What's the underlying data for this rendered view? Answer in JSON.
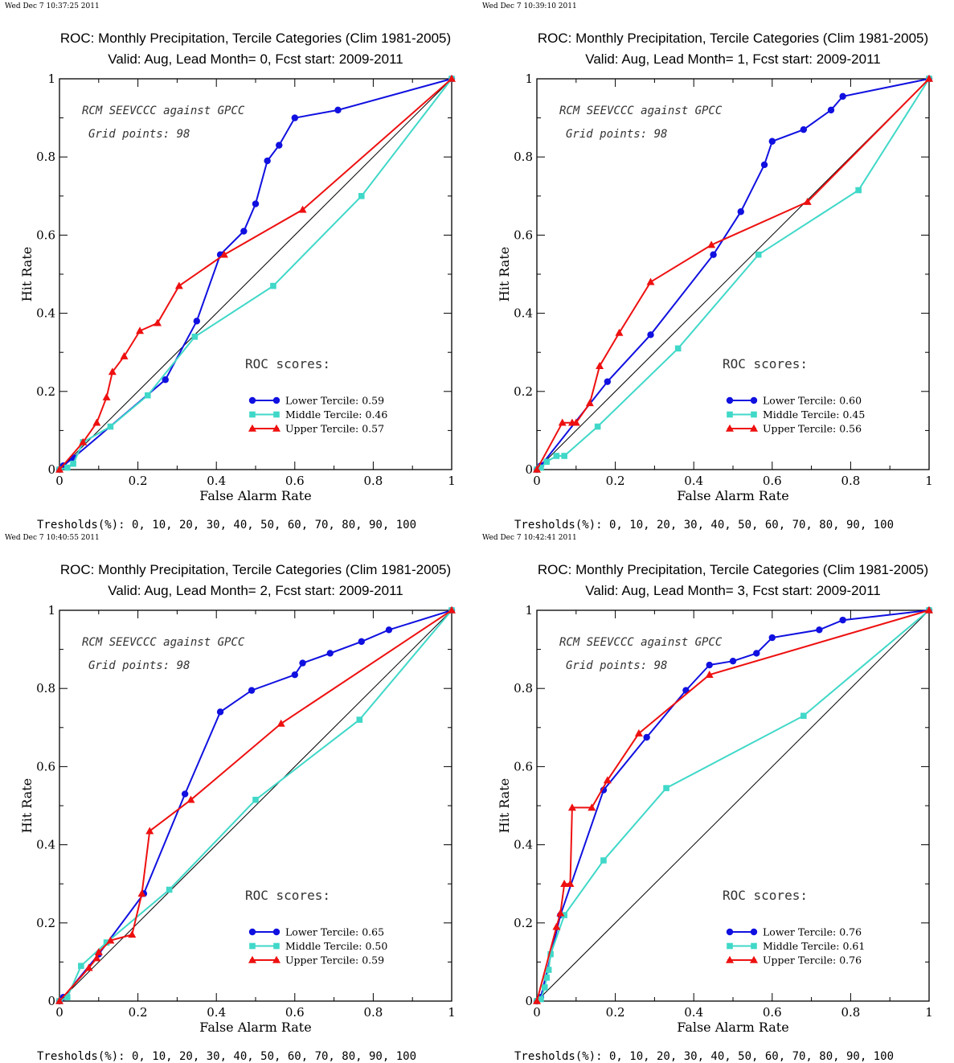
{
  "colors": {
    "lower": "#1010e0",
    "middle": "#40d8c8",
    "upper": "#ee1010",
    "diagonal": "#000000"
  },
  "chart_data": [
    {
      "type": "line",
      "timestamp": "Wed Dec  7 10:37:25 2011",
      "title": "ROC: Monthly Precipitation, Tercile Categories (Clim 1981-2005)",
      "subtitle": "Valid: Aug, Lead Month= 0, Fcst start: 2009-2011",
      "xlabel": "False Alarm Rate",
      "ylabel": "Hit Rate",
      "xlim": [
        0,
        1
      ],
      "ylim": [
        0,
        1
      ],
      "xticks": [
        "0",
        "0.2",
        "0.4",
        "0.6",
        "0.8",
        "1"
      ],
      "yticks": [
        "0",
        "0.2",
        "0.4",
        "0.6",
        "0.8",
        "1"
      ],
      "annotations": [
        "RCM SEEVCCC against GPCC",
        "Grid points:   98"
      ],
      "scores_heading": "ROC scores:",
      "thresholds": "Tresholds(%): 0, 10, 20, 30, 40, 50, 60, 70, 80, 90, 100",
      "legend_position": "lower-right",
      "series": [
        {
          "name": "Lower Tercile: 0.59",
          "key": "lower",
          "marker": "circle",
          "x": [
            0,
            0.01,
            0.035,
            0.27,
            0.35,
            0.41,
            0.47,
            0.5,
            0.53,
            0.56,
            0.6,
            0.71,
            1
          ],
          "y": [
            0,
            0.01,
            0.03,
            0.23,
            0.38,
            0.55,
            0.61,
            0.68,
            0.79,
            0.83,
            0.9,
            0.92,
            1
          ]
        },
        {
          "name": "Middle Tercile: 0.46",
          "key": "middle",
          "marker": "square",
          "x": [
            0,
            0.02,
            0.035,
            0.06,
            0.13,
            0.225,
            0.345,
            0.545,
            0.77,
            1
          ],
          "y": [
            0,
            0.005,
            0.015,
            0.07,
            0.11,
            0.19,
            0.34,
            0.47,
            0.7,
            1
          ]
        },
        {
          "name": "Upper Tercile: 0.57",
          "key": "upper",
          "marker": "triangle",
          "x": [
            0,
            0.06,
            0.095,
            0.12,
            0.135,
            0.165,
            0.205,
            0.25,
            0.305,
            0.42,
            0.62,
            1
          ],
          "y": [
            0,
            0.07,
            0.12,
            0.185,
            0.25,
            0.29,
            0.355,
            0.375,
            0.47,
            0.55,
            0.665,
            1
          ]
        }
      ]
    },
    {
      "type": "line",
      "timestamp": "Wed Dec  7 10:39:10 2011",
      "title": "ROC: Monthly Precipitation, Tercile Categories (Clim 1981-2005)",
      "subtitle": "Valid: Aug, Lead Month= 1, Fcst start: 2009-2011",
      "xlabel": "False Alarm Rate",
      "ylabel": "Hit Rate",
      "xlim": [
        0,
        1
      ],
      "ylim": [
        0,
        1
      ],
      "xticks": [
        "0",
        "0.2",
        "0.4",
        "0.6",
        "0.8",
        "1"
      ],
      "yticks": [
        "0",
        "0.2",
        "0.4",
        "0.6",
        "0.8",
        "1"
      ],
      "annotations": [
        "RCM SEEVCCC against GPCC",
        "Grid points:   98"
      ],
      "scores_heading": "ROC scores:",
      "thresholds": "Tresholds(%): 0, 10, 20, 30, 40, 50, 60, 70, 80, 90, 100",
      "legend_position": "lower-right",
      "series": [
        {
          "name": "Lower Tercile: 0.60",
          "key": "lower",
          "marker": "circle",
          "x": [
            0,
            0.01,
            0.18,
            0.29,
            0.45,
            0.52,
            0.58,
            0.6,
            0.68,
            0.75,
            0.78,
            1
          ],
          "y": [
            0,
            0.01,
            0.225,
            0.345,
            0.55,
            0.66,
            0.78,
            0.84,
            0.87,
            0.92,
            0.955,
            1
          ]
        },
        {
          "name": "Middle Tercile: 0.45",
          "key": "middle",
          "marker": "square",
          "x": [
            0,
            0.01,
            0.025,
            0.05,
            0.07,
            0.155,
            0.36,
            0.565,
            0.82,
            1
          ],
          "y": [
            0,
            0.005,
            0.02,
            0.035,
            0.035,
            0.11,
            0.31,
            0.55,
            0.715,
            1
          ]
        },
        {
          "name": "Upper Tercile: 0.56",
          "key": "upper",
          "marker": "triangle",
          "x": [
            0,
            0.065,
            0.09,
            0.1,
            0.135,
            0.16,
            0.21,
            0.29,
            0.445,
            0.69,
            1
          ],
          "y": [
            0,
            0.12,
            0.12,
            0.12,
            0.17,
            0.265,
            0.35,
            0.48,
            0.575,
            0.685,
            1
          ]
        }
      ]
    },
    {
      "type": "line",
      "timestamp": "Wed Dec  7 10:40:55 2011",
      "title": "ROC: Monthly Precipitation, Tercile Categories (Clim 1981-2005)",
      "subtitle": "Valid: Aug, Lead Month= 2, Fcst start: 2009-2011",
      "xlabel": "False Alarm Rate",
      "ylabel": "Hit Rate",
      "xlim": [
        0,
        1
      ],
      "ylim": [
        0,
        1
      ],
      "xticks": [
        "0",
        "0.2",
        "0.4",
        "0.6",
        "0.8",
        "1"
      ],
      "yticks": [
        "0",
        "0.2",
        "0.4",
        "0.6",
        "0.8",
        "1"
      ],
      "annotations": [
        "RCM SEEVCCC against GPCC",
        "Grid points:   98"
      ],
      "scores_heading": "ROC scores:",
      "thresholds": "Tresholds(%): 0, 10, 20, 30, 40, 50, 60, 70, 80, 90, 100",
      "legend_position": "lower-right",
      "series": [
        {
          "name": "Lower Tercile: 0.65",
          "key": "lower",
          "marker": "circle",
          "x": [
            0,
            0.01,
            0.1,
            0.215,
            0.32,
            0.41,
            0.49,
            0.6,
            0.62,
            0.69,
            0.77,
            0.84,
            1
          ],
          "y": [
            0,
            0.01,
            0.12,
            0.275,
            0.53,
            0.74,
            0.795,
            0.835,
            0.865,
            0.89,
            0.92,
            0.95,
            1
          ]
        },
        {
          "name": "Middle Tercile: 0.50",
          "key": "middle",
          "marker": "square",
          "x": [
            0,
            0.02,
            0.055,
            0.12,
            0.28,
            0.5,
            0.765,
            1
          ],
          "y": [
            0,
            0.01,
            0.09,
            0.15,
            0.285,
            0.515,
            0.72,
            1
          ]
        },
        {
          "name": "Upper Tercile: 0.59",
          "key": "upper",
          "marker": "triangle",
          "x": [
            0,
            0.075,
            0.095,
            0.1,
            0.13,
            0.185,
            0.21,
            0.23,
            0.335,
            0.565,
            1
          ],
          "y": [
            0,
            0.085,
            0.11,
            0.125,
            0.155,
            0.17,
            0.275,
            0.435,
            0.515,
            0.71,
            1
          ]
        }
      ]
    },
    {
      "type": "line",
      "timestamp": "Wed Dec  7 10:42:41 2011",
      "title": "ROC: Monthly Precipitation, Tercile Categories (Clim 1981-2005)",
      "subtitle": "Valid: Aug, Lead Month= 3, Fcst start: 2009-2011",
      "xlabel": "False Alarm Rate",
      "ylabel": "Hit Rate",
      "xlim": [
        0,
        1
      ],
      "ylim": [
        0,
        1
      ],
      "xticks": [
        "0",
        "0.2",
        "0.4",
        "0.6",
        "0.8",
        "1"
      ],
      "yticks": [
        "0",
        "0.2",
        "0.4",
        "0.6",
        "0.8",
        "1"
      ],
      "annotations": [
        "RCM SEEVCCC against GPCC",
        "Grid points:   98"
      ],
      "scores_heading": "ROC scores:",
      "thresholds": "Tresholds(%): 0, 10, 20, 30, 40, 50, 60, 70, 80, 90, 100",
      "legend_position": "lower-right",
      "series": [
        {
          "name": "Lower Tercile: 0.76",
          "key": "lower",
          "marker": "circle",
          "x": [
            0,
            0.01,
            0.06,
            0.17,
            0.28,
            0.38,
            0.44,
            0.5,
            0.56,
            0.6,
            0.72,
            0.78,
            1
          ],
          "y": [
            0,
            0.01,
            0.22,
            0.54,
            0.675,
            0.795,
            0.86,
            0.87,
            0.89,
            0.93,
            0.95,
            0.975,
            1
          ]
        },
        {
          "name": "Middle Tercile: 0.61",
          "key": "middle",
          "marker": "square",
          "x": [
            0,
            0.01,
            0.02,
            0.025,
            0.03,
            0.035,
            0.07,
            0.17,
            0.33,
            0.68,
            1
          ],
          "y": [
            0,
            0.005,
            0.035,
            0.06,
            0.08,
            0.12,
            0.22,
            0.36,
            0.545,
            0.73,
            1
          ]
        },
        {
          "name": "Upper Tercile: 0.76",
          "key": "upper",
          "marker": "triangle",
          "x": [
            0,
            0.05,
            0.06,
            0.07,
            0.085,
            0.09,
            0.14,
            0.18,
            0.26,
            0.44,
            1
          ],
          "y": [
            0,
            0.19,
            0.225,
            0.3,
            0.3,
            0.495,
            0.495,
            0.565,
            0.685,
            0.835,
            1
          ]
        }
      ]
    }
  ]
}
